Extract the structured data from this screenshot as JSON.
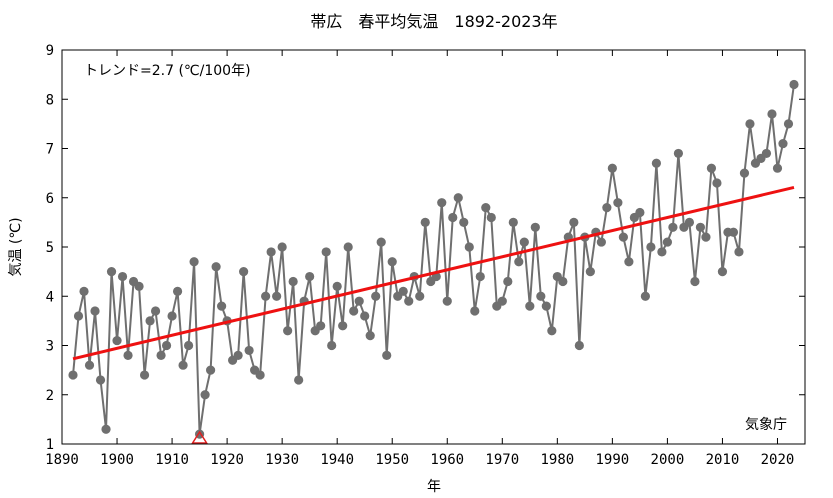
{
  "chart_data": {
    "type": "line",
    "title": "帯広　春平均気温　1892-2023年",
    "xlabel": "年",
    "ylabel": "気温 (℃)",
    "trend_label": "トレンド=2.7 (℃/100年)",
    "credit": "気象庁",
    "xlim": [
      1890,
      2025
    ],
    "ylim": [
      1,
      9
    ],
    "x_ticks": [
      1890,
      1900,
      1910,
      1920,
      1930,
      1940,
      1950,
      1960,
      1970,
      1980,
      1990,
      2000,
      2010,
      2020
    ],
    "y_ticks": [
      1,
      2,
      3,
      4,
      5,
      6,
      7,
      8,
      9
    ],
    "grid": false,
    "colors": {
      "series": "#6f6f6f",
      "trend": "#ee1111",
      "marker": "#e02020"
    },
    "series": [
      {
        "x": [
          1892,
          1893,
          1894,
          1895,
          1896,
          1897,
          1898,
          1899,
          1900,
          1901,
          1902,
          1903,
          1904,
          1905,
          1906,
          1907,
          1908,
          1909,
          1910,
          1911,
          1912,
          1913,
          1914,
          1915,
          1916,
          1917,
          1918,
          1919,
          1920,
          1921,
          1922,
          1923,
          1924,
          1925,
          1926,
          1927,
          1928,
          1929,
          1930,
          1931,
          1932,
          1933,
          1934,
          1935,
          1936,
          1937,
          1938,
          1939,
          1940,
          1941,
          1942,
          1943,
          1944,
          1945,
          1946,
          1947,
          1948,
          1949,
          1950,
          1951,
          1952,
          1953,
          1954,
          1955,
          1956,
          1957,
          1958,
          1959,
          1960,
          1961,
          1962,
          1963,
          1964,
          1965,
          1966,
          1967,
          1968,
          1969,
          1970,
          1971,
          1972,
          1973,
          1974,
          1975,
          1976,
          1977,
          1978,
          1979,
          1980,
          1981,
          1982,
          1983,
          1984,
          1985,
          1986,
          1987,
          1988,
          1989,
          1990,
          1991,
          1992,
          1993,
          1994,
          1995,
          1996,
          1997,
          1998,
          1999,
          2000,
          2001,
          2002,
          2003,
          2004,
          2005,
          2006,
          2007,
          2008,
          2009,
          2010,
          2011,
          2012,
          2013,
          2014,
          2015,
          2016,
          2017,
          2018,
          2019,
          2020,
          2021,
          2022,
          2023
        ],
        "y": [
          2.4,
          3.6,
          4.1,
          2.6,
          3.7,
          2.3,
          1.3,
          4.5,
          3.1,
          4.4,
          2.8,
          4.3,
          4.2,
          2.4,
          3.5,
          3.7,
          2.8,
          3.0,
          3.6,
          4.1,
          2.6,
          3.0,
          4.7,
          1.2,
          2.0,
          2.5,
          4.6,
          3.8,
          3.5,
          2.7,
          2.8,
          4.5,
          2.9,
          2.5,
          2.4,
          4.0,
          4.9,
          4.0,
          5.0,
          3.3,
          4.3,
          2.3,
          3.9,
          4.4,
          3.3,
          3.4,
          4.9,
          3.0,
          4.2,
          3.4,
          5.0,
          3.7,
          3.9,
          3.6,
          3.2,
          4.0,
          5.1,
          2.8,
          4.7,
          4.0,
          4.1,
          3.9,
          4.4,
          4.0,
          5.5,
          4.3,
          4.4,
          5.9,
          3.9,
          5.6,
          6.0,
          5.5,
          5.0,
          3.7,
          4.4,
          5.8,
          5.6,
          3.8,
          3.9,
          4.3,
          5.5,
          4.7,
          5.1,
          3.8,
          5.4,
          4.0,
          3.8,
          3.3,
          4.4,
          4.3,
          5.2,
          5.5,
          3.0,
          5.2,
          4.5,
          5.3,
          5.1,
          5.8,
          6.6,
          5.9,
          5.2,
          4.7,
          5.6,
          5.7,
          4.0,
          5.0,
          6.7,
          4.9,
          5.1,
          5.4,
          6.9,
          5.4,
          5.5,
          4.3,
          5.4,
          5.2,
          6.6,
          6.3,
          4.5,
          5.3,
          5.3,
          4.9,
          6.5,
          7.5,
          6.7,
          6.8,
          6.9,
          7.7,
          6.6,
          7.1,
          7.5,
          8.3
        ]
      }
    ],
    "trend": {
      "x": [
        1892,
        2023
      ],
      "y": [
        2.73,
        6.21
      ]
    },
    "min_marker": {
      "x": 1915,
      "y": 1.0,
      "shape": "open-triangle"
    }
  }
}
